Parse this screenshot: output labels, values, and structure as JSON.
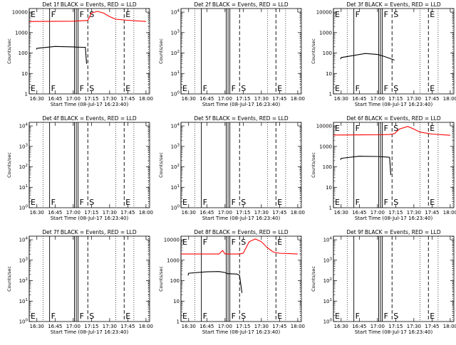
{
  "chart_data": [
    {
      "type": "line",
      "title": "Det 1f BLACK = Events, RED = LLD",
      "xlabel": "Start Time (08-Jul-17 16:23:40)",
      "ylabel": "Counts/sec",
      "xlim": [
        "16:23:40",
        "18:03:00"
      ],
      "ylim": [
        1,
        15000
      ],
      "yscale": "log",
      "x_ticks": [
        "16:30",
        "16:45",
        "17:00",
        "17:15",
        "17:30",
        "17:45",
        "18:00"
      ],
      "y_ticks": [
        "1",
        "10",
        "100",
        "1000",
        "10000"
      ],
      "markers": [
        {
          "label": "E",
          "time": "16:23:40",
          "style": "solid"
        },
        {
          "label": "F",
          "time": "16:40:30",
          "style": "solid"
        },
        {
          "label": "",
          "time": "17:01:00",
          "style": "solid"
        },
        {
          "label": "",
          "time": "17:02:30",
          "style": "solid"
        },
        {
          "label": "F",
          "time": "17:04:00",
          "style": "solid"
        },
        {
          "label": "S",
          "time": "17:12:00",
          "style": "dashed"
        },
        {
          "label": "E",
          "time": "17:42:00",
          "style": "dashed"
        }
      ],
      "gridlines": [
        "16:35:00",
        "17:35:00",
        "17:50:00",
        "18:02:00"
      ],
      "series": [
        {
          "color": "#000000",
          "points": [
            [
              "16:29:30",
              150
            ],
            [
              "16:30",
              170
            ],
            [
              "16:45",
              210
            ],
            [
              "17:00",
              200
            ],
            [
              "17:02",
              195
            ],
            [
              "17:08",
              190
            ],
            [
              "17:10",
              190
            ],
            [
              "17:11",
              30
            ]
          ]
        },
        {
          "color": "#ff0000",
          "points": [
            [
              "16:23:40",
              3500
            ],
            [
              "17:00",
              3600
            ],
            [
              "17:08",
              3800
            ],
            [
              "17:12",
              3900
            ],
            [
              "17:15",
              9000
            ],
            [
              "17:20",
              11000
            ],
            [
              "17:25",
              9000
            ],
            [
              "17:30",
              6000
            ],
            [
              "17:35",
              4500
            ],
            [
              "17:45",
              4000
            ],
            [
              "18:00",
              3500
            ]
          ]
        }
      ]
    },
    {
      "type": "line",
      "title": "Det 2f BLACK = Events, RED = LLD",
      "xlabel": "Start Time (08-Jul-17 16:23:40)",
      "ylabel": "Counts/sec",
      "xlim": [
        "16:23:40",
        "18:03:00"
      ],
      "ylim": [
        1,
        15000
      ],
      "yscale": "log",
      "x_ticks": [
        "16:30",
        "16:45",
        "17:00",
        "17:15",
        "17:30",
        "17:45",
        "18:00"
      ],
      "y_ticks": [
        "10^0",
        "10^1",
        "10^2",
        "10^3",
        "10^4"
      ],
      "markers": [
        {
          "label": "E",
          "time": "16:23:40",
          "style": "solid"
        },
        {
          "label": "F",
          "time": "16:40:30",
          "style": "solid"
        },
        {
          "label": "",
          "time": "17:01:00",
          "style": "solid"
        },
        {
          "label": "",
          "time": "17:02:30",
          "style": "solid"
        },
        {
          "label": "F",
          "time": "17:04:00",
          "style": "solid"
        },
        {
          "label": "S",
          "time": "17:12:00",
          "style": "dashed"
        },
        {
          "label": "E",
          "time": "17:42:00",
          "style": "dashed"
        }
      ],
      "gridlines": [
        "16:35:00",
        "17:35:00",
        "17:50:00",
        "18:02:00"
      ],
      "series": []
    },
    {
      "type": "line",
      "title": "Det 3f BLACK = Events, RED = LLD",
      "xlabel": "Start Time (08-Jul-17 16:23:40)",
      "ylabel": "Counts/sec",
      "xlim": [
        "16:23:40",
        "18:03:00"
      ],
      "ylim": [
        1,
        15000
      ],
      "yscale": "log",
      "x_ticks": [
        "16:30",
        "16:45",
        "17:00",
        "17:15",
        "17:30",
        "17:45",
        "18:00"
      ],
      "y_ticks": [
        "1",
        "10",
        "100",
        "1000",
        "10000"
      ],
      "markers": [
        {
          "label": "E",
          "time": "16:23:40",
          "style": "solid"
        },
        {
          "label": "F",
          "time": "16:40:30",
          "style": "solid"
        },
        {
          "label": "",
          "time": "17:01:00",
          "style": "solid"
        },
        {
          "label": "",
          "time": "17:02:30",
          "style": "solid"
        },
        {
          "label": "F",
          "time": "17:04:00",
          "style": "solid"
        },
        {
          "label": "S",
          "time": "17:12:00",
          "style": "dashed"
        },
        {
          "label": "E",
          "time": "17:42:00",
          "style": "dashed"
        }
      ],
      "gridlines": [
        "16:35:00",
        "17:35:00",
        "17:50:00",
        "18:02:00"
      ],
      "series": [
        {
          "color": "#000000",
          "points": [
            [
              "16:29:30",
              50
            ],
            [
              "16:30",
              60
            ],
            [
              "16:40",
              75
            ],
            [
              "16:50",
              95
            ],
            [
              "17:00",
              85
            ],
            [
              "17:05",
              70
            ],
            [
              "17:10",
              55
            ],
            [
              "17:14",
              45
            ]
          ]
        }
      ]
    },
    {
      "type": "line",
      "title": "Det 4f BLACK = Events, RED = LLD",
      "xlabel": "Start Time (08-Jul-17 16:23:40)",
      "ylabel": "Counts/sec",
      "xlim": [
        "16:23:40",
        "18:03:00"
      ],
      "ylim": [
        1,
        15000
      ],
      "yscale": "log",
      "x_ticks": [
        "16:30",
        "16:45",
        "17:00",
        "17:15",
        "17:30",
        "17:45",
        "18:00"
      ],
      "y_ticks": [
        "10^0",
        "10^1",
        "10^2",
        "10^3",
        "10^4"
      ],
      "markers": [
        {
          "label": "E",
          "time": "16:23:40",
          "style": "solid"
        },
        {
          "label": "F",
          "time": "16:40:30",
          "style": "solid"
        },
        {
          "label": "",
          "time": "17:01:00",
          "style": "solid"
        },
        {
          "label": "",
          "time": "17:02:30",
          "style": "solid"
        },
        {
          "label": "F",
          "time": "17:04:00",
          "style": "solid"
        },
        {
          "label": "S",
          "time": "17:12:00",
          "style": "dashed"
        },
        {
          "label": "E",
          "time": "17:42:00",
          "style": "dashed"
        }
      ],
      "gridlines": [
        "16:35:00",
        "17:35:00",
        "17:50:00",
        "18:02:00"
      ],
      "series": []
    },
    {
      "type": "line",
      "title": "Det 5f BLACK = Events, RED = LLD",
      "xlabel": "Start Time (08-Jul-17 16:23:40)",
      "ylabel": "Counts/sec",
      "xlim": [
        "16:23:40",
        "18:03:00"
      ],
      "ylim": [
        1,
        15000
      ],
      "yscale": "log",
      "x_ticks": [
        "16:30",
        "16:45",
        "17:00",
        "17:15",
        "17:30",
        "17:45",
        "18:00"
      ],
      "y_ticks": [
        "10^0",
        "10^1",
        "10^2",
        "10^3",
        "10^4"
      ],
      "markers": [
        {
          "label": "E",
          "time": "16:23:40",
          "style": "solid"
        },
        {
          "label": "F",
          "time": "16:40:30",
          "style": "solid"
        },
        {
          "label": "",
          "time": "17:01:00",
          "style": "solid"
        },
        {
          "label": "",
          "time": "17:02:30",
          "style": "solid"
        },
        {
          "label": "F",
          "time": "17:04:00",
          "style": "solid"
        },
        {
          "label": "S",
          "time": "17:12:00",
          "style": "dashed"
        },
        {
          "label": "E",
          "time": "17:42:00",
          "style": "dashed"
        }
      ],
      "gridlines": [
        "16:35:00",
        "17:35:00",
        "17:50:00",
        "18:02:00"
      ],
      "series": []
    },
    {
      "type": "line",
      "title": "Det 6f BLACK = Events, RED = LLD",
      "xlabel": "Start Time (08-Jul-17 16:23:40)",
      "ylabel": "Counts/sec",
      "xlim": [
        "16:23:40",
        "18:03:00"
      ],
      "ylim": [
        1,
        15000
      ],
      "yscale": "log",
      "x_ticks": [
        "16:30",
        "16:45",
        "17:00",
        "17:15",
        "17:30",
        "17:45",
        "18:00"
      ],
      "y_ticks": [
        "1",
        "10",
        "100",
        "1000",
        "10000"
      ],
      "markers": [
        {
          "label": "E",
          "time": "16:23:40",
          "style": "solid"
        },
        {
          "label": "F",
          "time": "16:40:30",
          "style": "solid"
        },
        {
          "label": "",
          "time": "17:01:00",
          "style": "solid"
        },
        {
          "label": "",
          "time": "17:02:30",
          "style": "solid"
        },
        {
          "label": "F",
          "time": "17:04:00",
          "style": "solid"
        },
        {
          "label": "S",
          "time": "17:12:00",
          "style": "dashed"
        },
        {
          "label": "E",
          "time": "17:42:00",
          "style": "dashed"
        }
      ],
      "gridlines": [
        "16:35:00",
        "17:35:00",
        "17:50:00",
        "18:02:00"
      ],
      "series": [
        {
          "color": "#000000",
          "points": [
            [
              "16:29:30",
              220
            ],
            [
              "16:30",
              260
            ],
            [
              "16:45",
              330
            ],
            [
              "17:00",
              320
            ],
            [
              "17:08",
              300
            ],
            [
              "17:10",
              290
            ],
            [
              "17:11",
              40
            ]
          ]
        },
        {
          "color": "#ff0000",
          "points": [
            [
              "16:23:40",
              3600
            ],
            [
              "17:00",
              3700
            ],
            [
              "17:10",
              3800
            ],
            [
              "17:14",
              4200
            ],
            [
              "17:18",
              7000
            ],
            [
              "17:25",
              9500
            ],
            [
              "17:30",
              7000
            ],
            [
              "17:35",
              5000
            ],
            [
              "17:45",
              4000
            ],
            [
              "18:00",
              3500
            ]
          ]
        }
      ]
    },
    {
      "type": "line",
      "title": "Det 7f BLACK = Events, RED = LLD",
      "xlabel": "Start Time (08-Jul-17 16:23:40)",
      "ylabel": "Counts/sec",
      "xlim": [
        "16:23:40",
        "18:03:00"
      ],
      "ylim": [
        1,
        15000
      ],
      "yscale": "log",
      "x_ticks": [
        "16:30",
        "16:45",
        "17:00",
        "17:15",
        "17:30",
        "17:45",
        "18:00"
      ],
      "y_ticks": [
        "10^0",
        "10^1",
        "10^2",
        "10^3",
        "10^4"
      ],
      "markers": [
        {
          "label": "E",
          "time": "16:23:40",
          "style": "solid"
        },
        {
          "label": "F",
          "time": "16:40:30",
          "style": "solid"
        },
        {
          "label": "",
          "time": "17:01:00",
          "style": "solid"
        },
        {
          "label": "",
          "time": "17:02:30",
          "style": "solid"
        },
        {
          "label": "F",
          "time": "17:04:00",
          "style": "solid"
        },
        {
          "label": "S",
          "time": "17:12:00",
          "style": "dashed"
        },
        {
          "label": "E",
          "time": "17:42:00",
          "style": "dashed"
        }
      ],
      "gridlines": [
        "16:35:00",
        "17:35:00",
        "17:50:00",
        "18:02:00"
      ],
      "series": []
    },
    {
      "type": "line",
      "title": "Det 8f BLACK = Events, RED = LLD",
      "xlabel": "Start Time (08-Jul-17 16:23:40)",
      "ylabel": "Counts/sec",
      "xlim": [
        "16:23:40",
        "18:03:00"
      ],
      "ylim": [
        1,
        15000
      ],
      "yscale": "log",
      "x_ticks": [
        "16:30",
        "16:45",
        "17:00",
        "17:15",
        "17:30",
        "17:45",
        "18:00"
      ],
      "y_ticks": [
        "1",
        "10",
        "100",
        "1000",
        "10000"
      ],
      "markers": [
        {
          "label": "E",
          "time": "16:23:40",
          "style": "solid"
        },
        {
          "label": "F",
          "time": "16:40:30",
          "style": "solid"
        },
        {
          "label": "",
          "time": "17:01:00",
          "style": "solid"
        },
        {
          "label": "",
          "time": "17:02:30",
          "style": "solid"
        },
        {
          "label": "F",
          "time": "17:04:00",
          "style": "solid"
        },
        {
          "label": "S",
          "time": "17:12:00",
          "style": "dashed"
        },
        {
          "label": "E",
          "time": "17:42:00",
          "style": "dashed"
        }
      ],
      "gridlines": [
        "16:35:00",
        "17:35:00",
        "17:50:00",
        "18:02:00"
      ],
      "series": [
        {
          "color": "#000000",
          "points": [
            [
              "16:29:30",
              180
            ],
            [
              "16:30",
              230
            ],
            [
              "16:45",
              270
            ],
            [
              "16:55",
              280
            ],
            [
              "17:00",
              250
            ],
            [
              "17:02",
              220
            ],
            [
              "17:10",
              210
            ],
            [
              "17:12",
              180
            ],
            [
              "17:14",
              25
            ]
          ]
        },
        {
          "color": "#ff0000",
          "points": [
            [
              "16:23:40",
              2000
            ],
            [
              "16:55",
              2000
            ],
            [
              "16:58",
              3000
            ],
            [
              "17:00",
              2000
            ],
            [
              "17:12",
              2000
            ],
            [
              "17:15",
              2200
            ],
            [
              "17:20",
              8000
            ],
            [
              "17:25",
              11000
            ],
            [
              "17:30",
              8000
            ],
            [
              "17:35",
              4000
            ],
            [
              "17:40",
              2500
            ],
            [
              "17:45",
              2200
            ],
            [
              "18:00",
              2000
            ]
          ]
        }
      ]
    },
    {
      "type": "line",
      "title": "Det 9f BLACK = Events, RED = LLD",
      "xlabel": "Start Time (08-Jul-17 16:23:40)",
      "ylabel": "Counts/sec",
      "xlim": [
        "16:23:40",
        "18:03:00"
      ],
      "ylim": [
        1,
        15000
      ],
      "yscale": "log",
      "x_ticks": [
        "16:30",
        "16:45",
        "17:00",
        "17:15",
        "17:30",
        "17:45",
        "18:00"
      ],
      "y_ticks": [
        "10^0",
        "10^1",
        "10^2",
        "10^3",
        "10^4"
      ],
      "markers": [
        {
          "label": "E",
          "time": "16:23:40",
          "style": "solid"
        },
        {
          "label": "F",
          "time": "16:40:30",
          "style": "solid"
        },
        {
          "label": "",
          "time": "17:01:00",
          "style": "solid"
        },
        {
          "label": "",
          "time": "17:02:30",
          "style": "solid"
        },
        {
          "label": "F",
          "time": "17:04:00",
          "style": "solid"
        },
        {
          "label": "S",
          "time": "17:12:00",
          "style": "dashed"
        },
        {
          "label": "E",
          "time": "17:42:00",
          "style": "dashed"
        }
      ],
      "gridlines": [
        "16:35:00",
        "17:35:00",
        "17:50:00",
        "18:02:00"
      ],
      "series": []
    }
  ]
}
